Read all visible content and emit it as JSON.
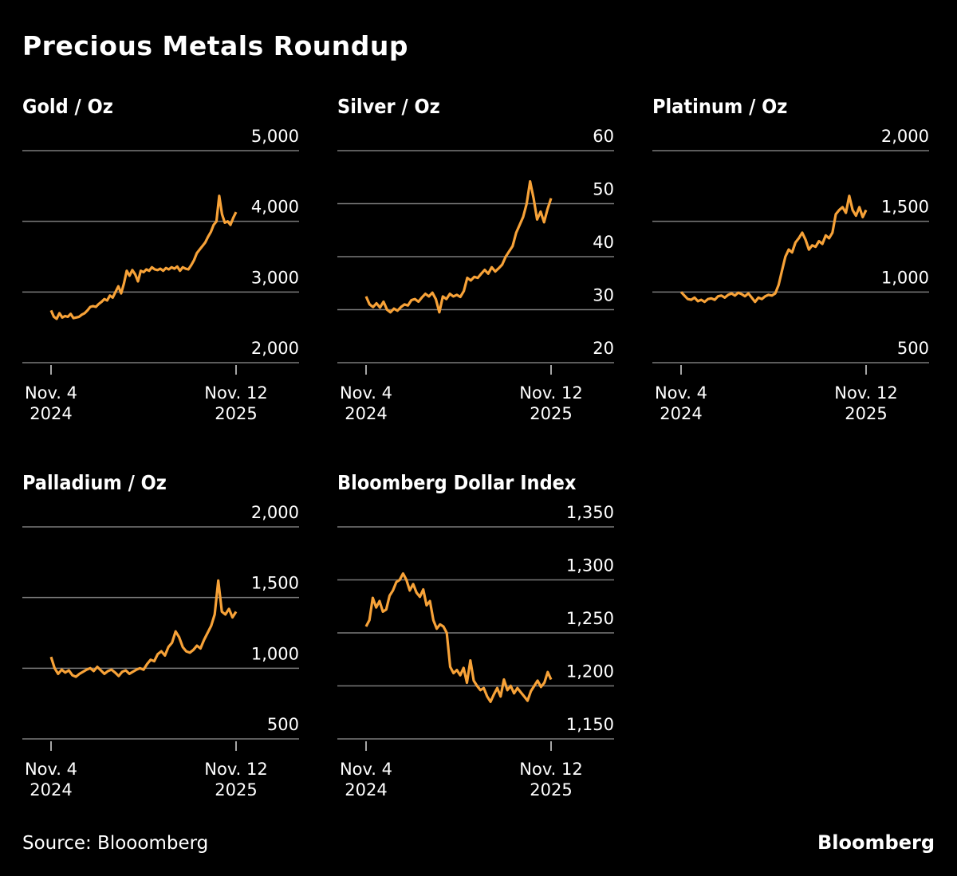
{
  "title": "Precious Metals Roundup",
  "source": "Source: Blooomberg",
  "logo": "Bloomberg",
  "colors": {
    "line": "#f7a238",
    "grid": "#7a7a7a",
    "background": "#000000",
    "text": "#ffffff"
  },
  "chart_data": [
    {
      "type": "line",
      "title": "Gold / Oz",
      "ylim": [
        2000,
        5000
      ],
      "yticks": [
        "5,000",
        "4,000",
        "3,000",
        "2,000"
      ],
      "ytick_values": [
        5000,
        4000,
        3000,
        2000
      ],
      "xticks": [
        {
          "line1": "Nov. 4",
          "line2": "2024"
        },
        {
          "line1": "Nov. 12",
          "line2": "2025"
        }
      ],
      "x_range": [
        "2024-11-04",
        "2025-11-12"
      ],
      "grid": true,
      "values": [
        2740,
        2650,
        2620,
        2700,
        2640,
        2660,
        2650,
        2690,
        2630,
        2640,
        2650,
        2680,
        2700,
        2740,
        2790,
        2800,
        2790,
        2830,
        2860,
        2900,
        2880,
        2950,
        2920,
        3000,
        3080,
        2980,
        3120,
        3300,
        3230,
        3310,
        3250,
        3150,
        3300,
        3280,
        3320,
        3300,
        3350,
        3320,
        3310,
        3330,
        3300,
        3340,
        3320,
        3350,
        3330,
        3360,
        3300,
        3350,
        3330,
        3320,
        3380,
        3450,
        3550,
        3600,
        3650,
        3700,
        3780,
        3850,
        3950,
        4000,
        4360,
        4100,
        3980,
        4000,
        3950,
        4050,
        4130
      ]
    },
    {
      "type": "line",
      "title": "Silver / Oz",
      "ylim": [
        20,
        60
      ],
      "yticks": [
        "60",
        "50",
        "40",
        "30",
        "20"
      ],
      "ytick_values": [
        60,
        50,
        40,
        30,
        20
      ],
      "xticks": [
        {
          "line1": "Nov. 4",
          "line2": "2024"
        },
        {
          "line1": "Nov. 12",
          "line2": "2025"
        }
      ],
      "x_range": [
        "2024-11-04",
        "2025-11-12"
      ],
      "grid": true,
      "values": [
        32.5,
        31,
        30.5,
        31.2,
        30.4,
        31.5,
        30,
        29.5,
        30.2,
        29.8,
        30.5,
        31,
        30.8,
        31.8,
        32,
        31.5,
        32.3,
        33,
        32.5,
        33.2,
        32,
        29.5,
        32.5,
        32,
        33,
        32.5,
        32.8,
        32.4,
        33.5,
        36,
        35.5,
        36.2,
        36,
        36.8,
        37.5,
        36.8,
        38,
        37.2,
        37.8,
        38.5,
        40,
        41,
        42,
        44.5,
        46,
        47.5,
        50,
        54.2,
        51,
        47,
        48.5,
        46.5,
        49,
        51
      ]
    },
    {
      "type": "line",
      "title": "Platinum / Oz",
      "ylim": [
        500,
        2000
      ],
      "yticks": [
        "2,000",
        "1,500",
        "1,000",
        "500"
      ],
      "ytick_values": [
        2000,
        1500,
        1000,
        500
      ],
      "xticks": [
        {
          "line1": "Nov. 4",
          "line2": "2024"
        },
        {
          "line1": "Nov. 12",
          "line2": "2025"
        }
      ],
      "x_range": [
        "2024-11-04",
        "2025-11-12"
      ],
      "grid": true,
      "values": [
        1000,
        975,
        950,
        945,
        960,
        935,
        945,
        930,
        950,
        955,
        945,
        970,
        975,
        960,
        980,
        990,
        975,
        995,
        985,
        970,
        990,
        960,
        930,
        960,
        950,
        970,
        980,
        975,
        990,
        1050,
        1150,
        1250,
        1300,
        1280,
        1350,
        1380,
        1420,
        1370,
        1300,
        1330,
        1320,
        1360,
        1340,
        1400,
        1380,
        1420,
        1550,
        1580,
        1600,
        1560,
        1680,
        1580,
        1540,
        1600,
        1530,
        1580
      ]
    },
    {
      "type": "line",
      "title": "Palladium / Oz",
      "ylim": [
        500,
        2000
      ],
      "yticks": [
        "2,000",
        "1,500",
        "1,000",
        "500"
      ],
      "ytick_values": [
        2000,
        1500,
        1000,
        500
      ],
      "xticks": [
        {
          "line1": "Nov. 4",
          "line2": "2024"
        },
        {
          "line1": "Nov. 12",
          "line2": "2025"
        }
      ],
      "x_range": [
        "2024-11-04",
        "2025-11-12"
      ],
      "grid": true,
      "values": [
        1080,
        1000,
        960,
        990,
        970,
        985,
        950,
        940,
        960,
        975,
        990,
        1000,
        980,
        1010,
        985,
        960,
        980,
        990,
        970,
        945,
        975,
        985,
        960,
        975,
        990,
        1000,
        990,
        1030,
        1060,
        1050,
        1100,
        1120,
        1090,
        1150,
        1180,
        1260,
        1220,
        1150,
        1120,
        1110,
        1130,
        1160,
        1140,
        1200,
        1250,
        1300,
        1380,
        1620,
        1400,
        1380,
        1420,
        1360,
        1400
      ]
    },
    {
      "type": "line",
      "title": "Bloomberg Dollar Index",
      "ylim": [
        1150,
        1350
      ],
      "yticks": [
        "1,350",
        "1,300",
        "1,250",
        "1,200",
        "1,150"
      ],
      "ytick_values": [
        1350,
        1300,
        1250,
        1200,
        1150
      ],
      "xticks": [
        {
          "line1": "Nov. 4",
          "line2": "2024"
        },
        {
          "line1": "Nov. 12",
          "line2": "2025"
        }
      ],
      "x_range": [
        "2024-11-04",
        "2025-11-12"
      ],
      "grid": true,
      "values": [
        1256,
        1262,
        1283,
        1274,
        1280,
        1270,
        1272,
        1285,
        1290,
        1298,
        1300,
        1306,
        1300,
        1290,
        1296,
        1288,
        1284,
        1291,
        1276,
        1280,
        1262,
        1254,
        1258,
        1256,
        1250,
        1218,
        1212,
        1215,
        1210,
        1217,
        1203,
        1224,
        1205,
        1200,
        1196,
        1198,
        1190,
        1185,
        1192,
        1198,
        1190,
        1206,
        1196,
        1200,
        1193,
        1198,
        1194,
        1190,
        1186,
        1195,
        1200,
        1205,
        1199,
        1203,
        1213,
        1206
      ]
    }
  ]
}
